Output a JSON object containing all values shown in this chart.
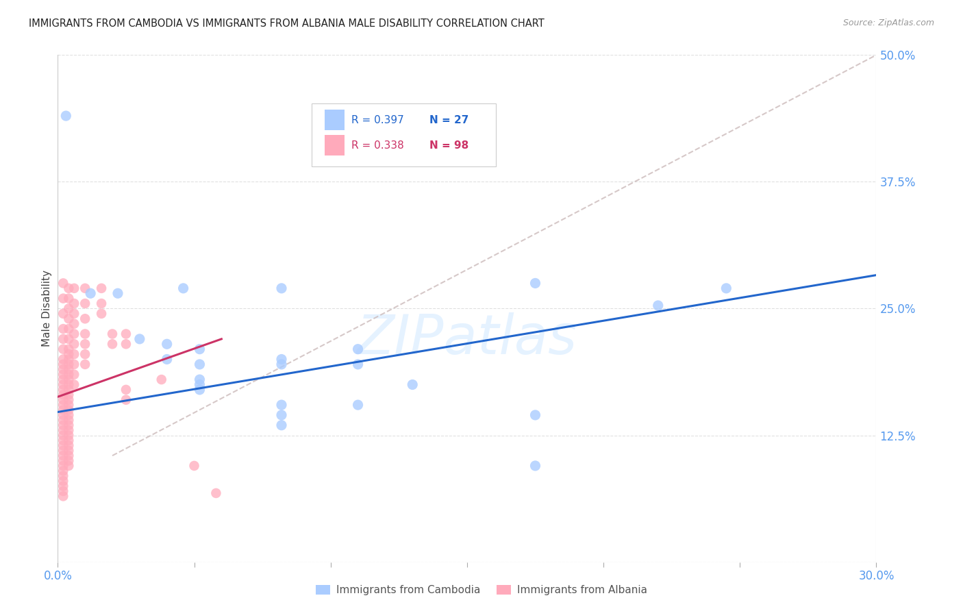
{
  "title": "IMMIGRANTS FROM CAMBODIA VS IMMIGRANTS FROM ALBANIA MALE DISABILITY CORRELATION CHART",
  "source": "Source: ZipAtlas.com",
  "ylabel": "Male Disability",
  "xlim": [
    0.0,
    0.3
  ],
  "ylim": [
    0.0,
    0.5
  ],
  "xticks": [
    0.0,
    0.05,
    0.1,
    0.15,
    0.2,
    0.25,
    0.3
  ],
  "xticklabels": [
    "0.0%",
    "",
    "",
    "",
    "",
    "",
    "30.0%"
  ],
  "yticks": [
    0.0,
    0.125,
    0.25,
    0.375,
    0.5
  ],
  "yticklabels": [
    "",
    "12.5%",
    "25.0%",
    "37.5%",
    "50.0%"
  ],
  "ytick_color": "#5599ee",
  "xtick_color": "#5599ee",
  "grid_color": "#dddddd",
  "background_color": "#ffffff",
  "watermark": "ZIPatlas",
  "cambodia_color": "#aaccff",
  "albania_color": "#ffaabb",
  "cambodia_line_color": "#2266cc",
  "albania_line_color": "#cc3366",
  "dashed_line_color": "#ccbbbb",
  "cambodia_data": [
    [
      0.003,
      0.44
    ],
    [
      0.022,
      0.265
    ],
    [
      0.012,
      0.265
    ],
    [
      0.03,
      0.22
    ],
    [
      0.046,
      0.27
    ],
    [
      0.04,
      0.215
    ],
    [
      0.04,
      0.2
    ],
    [
      0.052,
      0.21
    ],
    [
      0.052,
      0.195
    ],
    [
      0.052,
      0.18
    ],
    [
      0.052,
      0.175
    ],
    [
      0.052,
      0.17
    ],
    [
      0.082,
      0.27
    ],
    [
      0.082,
      0.2
    ],
    [
      0.082,
      0.195
    ],
    [
      0.082,
      0.155
    ],
    [
      0.082,
      0.145
    ],
    [
      0.082,
      0.135
    ],
    [
      0.11,
      0.21
    ],
    [
      0.11,
      0.195
    ],
    [
      0.11,
      0.155
    ],
    [
      0.13,
      0.175
    ],
    [
      0.175,
      0.275
    ],
    [
      0.175,
      0.145
    ],
    [
      0.175,
      0.095
    ],
    [
      0.22,
      0.253
    ],
    [
      0.245,
      0.27
    ]
  ],
  "albania_data": [
    [
      0.002,
      0.275
    ],
    [
      0.002,
      0.26
    ],
    [
      0.002,
      0.245
    ],
    [
      0.002,
      0.23
    ],
    [
      0.002,
      0.22
    ],
    [
      0.002,
      0.21
    ],
    [
      0.002,
      0.2
    ],
    [
      0.002,
      0.195
    ],
    [
      0.002,
      0.19
    ],
    [
      0.002,
      0.185
    ],
    [
      0.002,
      0.18
    ],
    [
      0.002,
      0.175
    ],
    [
      0.002,
      0.17
    ],
    [
      0.002,
      0.165
    ],
    [
      0.002,
      0.16
    ],
    [
      0.002,
      0.155
    ],
    [
      0.002,
      0.15
    ],
    [
      0.002,
      0.145
    ],
    [
      0.002,
      0.14
    ],
    [
      0.002,
      0.135
    ],
    [
      0.002,
      0.13
    ],
    [
      0.002,
      0.125
    ],
    [
      0.002,
      0.12
    ],
    [
      0.002,
      0.115
    ],
    [
      0.002,
      0.11
    ],
    [
      0.002,
      0.105
    ],
    [
      0.002,
      0.1
    ],
    [
      0.002,
      0.095
    ],
    [
      0.002,
      0.09
    ],
    [
      0.002,
      0.085
    ],
    [
      0.002,
      0.08
    ],
    [
      0.002,
      0.075
    ],
    [
      0.002,
      0.07
    ],
    [
      0.002,
      0.065
    ],
    [
      0.004,
      0.27
    ],
    [
      0.004,
      0.26
    ],
    [
      0.004,
      0.25
    ],
    [
      0.004,
      0.24
    ],
    [
      0.004,
      0.23
    ],
    [
      0.004,
      0.22
    ],
    [
      0.004,
      0.21
    ],
    [
      0.004,
      0.205
    ],
    [
      0.004,
      0.2
    ],
    [
      0.004,
      0.195
    ],
    [
      0.004,
      0.19
    ],
    [
      0.004,
      0.185
    ],
    [
      0.004,
      0.18
    ],
    [
      0.004,
      0.175
    ],
    [
      0.004,
      0.17
    ],
    [
      0.004,
      0.165
    ],
    [
      0.004,
      0.16
    ],
    [
      0.004,
      0.155
    ],
    [
      0.004,
      0.15
    ],
    [
      0.004,
      0.145
    ],
    [
      0.004,
      0.14
    ],
    [
      0.004,
      0.135
    ],
    [
      0.004,
      0.13
    ],
    [
      0.004,
      0.125
    ],
    [
      0.004,
      0.12
    ],
    [
      0.004,
      0.115
    ],
    [
      0.004,
      0.11
    ],
    [
      0.004,
      0.105
    ],
    [
      0.004,
      0.1
    ],
    [
      0.004,
      0.095
    ],
    [
      0.006,
      0.27
    ],
    [
      0.006,
      0.255
    ],
    [
      0.006,
      0.245
    ],
    [
      0.006,
      0.235
    ],
    [
      0.006,
      0.225
    ],
    [
      0.006,
      0.215
    ],
    [
      0.006,
      0.205
    ],
    [
      0.006,
      0.195
    ],
    [
      0.006,
      0.185
    ],
    [
      0.006,
      0.175
    ],
    [
      0.01,
      0.27
    ],
    [
      0.01,
      0.255
    ],
    [
      0.01,
      0.24
    ],
    [
      0.01,
      0.225
    ],
    [
      0.01,
      0.215
    ],
    [
      0.01,
      0.205
    ],
    [
      0.01,
      0.195
    ],
    [
      0.016,
      0.27
    ],
    [
      0.016,
      0.255
    ],
    [
      0.016,
      0.245
    ],
    [
      0.02,
      0.225
    ],
    [
      0.02,
      0.215
    ],
    [
      0.025,
      0.225
    ],
    [
      0.025,
      0.215
    ],
    [
      0.025,
      0.17
    ],
    [
      0.025,
      0.16
    ],
    [
      0.038,
      0.18
    ],
    [
      0.05,
      0.095
    ],
    [
      0.058,
      0.068
    ]
  ],
  "cambodia_line_x": [
    0.0,
    0.3
  ],
  "cambodia_line_y": [
    0.148,
    0.283
  ],
  "albania_line_x": [
    0.0,
    0.06
  ],
  "albania_line_y": [
    0.163,
    0.22
  ],
  "dashed_line_x": [
    0.02,
    0.3
  ],
  "dashed_line_y": [
    0.105,
    0.5
  ]
}
